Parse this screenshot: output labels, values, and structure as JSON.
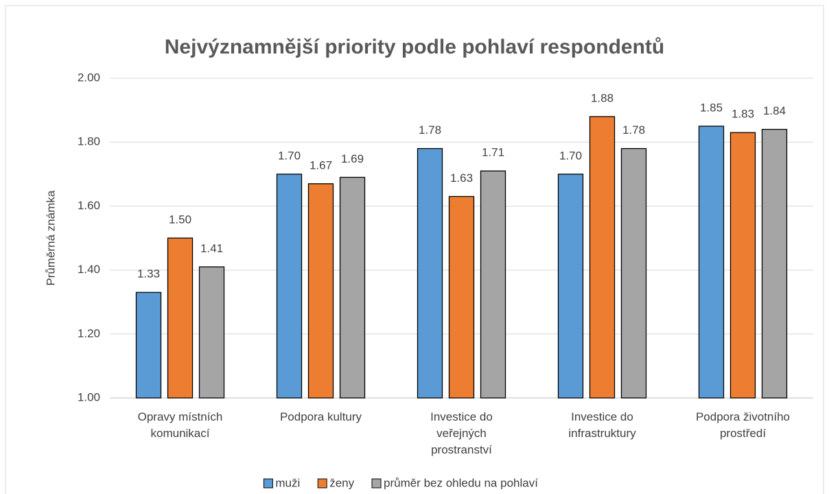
{
  "chart_data": {
    "type": "bar",
    "title": "Nejvýznamnější priority podle pohlaví respondentů",
    "y_label": "Průměrná známka",
    "categories": [
      "Opravy místních\nkomunikací",
      "Podpora kultury",
      "Investice do\nveřejných\nprostranství",
      "Investice do\ninfrastruktury",
      "Podpora životního\nprostředí"
    ],
    "series": [
      {
        "name": "muži",
        "color": "#5b9bd5",
        "values": [
          1.33,
          1.7,
          1.78,
          1.7,
          1.85
        ],
        "value_labels": [
          "1.33",
          "1.70",
          "1.78",
          "1.70",
          "1.85"
        ]
      },
      {
        "name": "ženy",
        "color": "#ed7d31",
        "values": [
          1.5,
          1.67,
          1.63,
          1.88,
          1.83
        ],
        "value_labels": [
          "1.50",
          "1.67",
          "1.63",
          "1.88",
          "1.83"
        ]
      },
      {
        "name": "průměr bez ohledu na pohlaví",
        "color": "#a5a5a5",
        "values": [
          1.41,
          1.69,
          1.71,
          1.78,
          1.84
        ],
        "value_labels": [
          "1.41",
          "1.69",
          "1.71",
          "1.78",
          "1.84"
        ]
      }
    ],
    "ylim": [
      1,
      2
    ],
    "yticks": [
      {
        "value": 1,
        "label": "1.00"
      },
      {
        "value": 1.2,
        "label": "1.20"
      },
      {
        "value": 1.4,
        "label": "1.40"
      },
      {
        "value": 1.6,
        "label": "1.60"
      },
      {
        "value": 1.8,
        "label": "1.80"
      },
      {
        "value": 2,
        "label": "2.00"
      }
    ],
    "grid": true,
    "legend": "bottom"
  }
}
